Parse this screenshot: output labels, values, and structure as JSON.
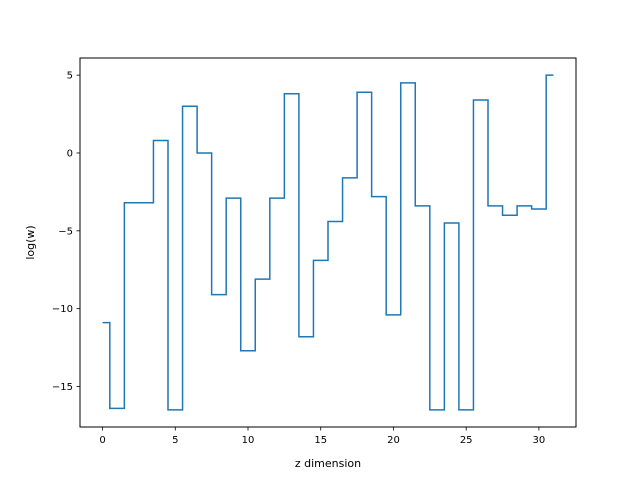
{
  "chart_data": {
    "type": "line",
    "drawstyle": "steps-mid",
    "xlabel": "z dimension",
    "ylabel": "log(w)",
    "xlim": [
      -1.55,
      32.55
    ],
    "ylim": [
      -17.6,
      6.1
    ],
    "xticks": [
      0,
      5,
      10,
      15,
      20,
      25,
      30
    ],
    "yticks": [
      -15,
      -10,
      -5,
      0,
      5
    ],
    "x": [
      0,
      1,
      2,
      3,
      4,
      5,
      6,
      7,
      8,
      9,
      10,
      11,
      12,
      13,
      14,
      15,
      16,
      17,
      18,
      19,
      20,
      21,
      22,
      23,
      24,
      25,
      26,
      27,
      28,
      29,
      30,
      31
    ],
    "series": [
      {
        "color": "#1f77b4",
        "values": [
          -10.9,
          -16.4,
          -3.2,
          -3.2,
          0.8,
          -16.5,
          3.0,
          0.0,
          -9.1,
          -2.9,
          -12.7,
          -8.1,
          -2.9,
          3.8,
          -11.8,
          -6.9,
          -4.4,
          -1.6,
          3.9,
          -2.8,
          -10.4,
          4.5,
          -3.4,
          -16.5,
          -4.5,
          -16.5,
          3.4,
          -3.4,
          -4.0,
          -3.4,
          -3.6,
          5.0
        ]
      }
    ]
  }
}
